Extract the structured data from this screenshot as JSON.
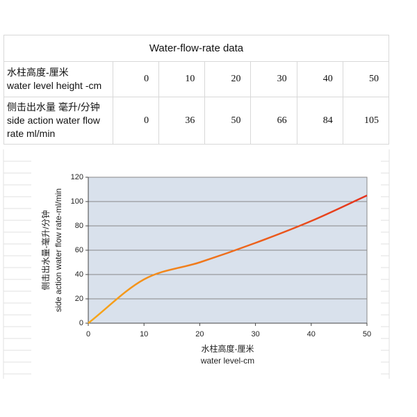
{
  "table": {
    "title": "Water-flow-rate data",
    "rows": [
      {
        "label": [
          "水柱高度-厘米",
          "water level height -cm"
        ],
        "cells": [
          0,
          10,
          20,
          30,
          40,
          50
        ]
      },
      {
        "label": [
          "侧击出水量  毫升/分钟",
          "side action water flow",
          "rate ml/min"
        ],
        "cells": [
          0,
          36,
          50,
          66,
          84,
          105
        ]
      }
    ]
  },
  "chart_data": {
    "type": "line",
    "x": [
      0,
      10,
      20,
      30,
      40,
      50
    ],
    "values": [
      0,
      36,
      50,
      66,
      84,
      105
    ],
    "xlim": [
      0,
      50
    ],
    "xticks": [
      0,
      10,
      20,
      30,
      40,
      50
    ],
    "ylim": [
      0,
      120
    ],
    "yticks": [
      0,
      20,
      40,
      60,
      80,
      100,
      120
    ],
    "xlabel": [
      "水柱高度-厘米",
      "water level-cm"
    ],
    "ylabel": [
      "侧击出水量-毫升/分钟",
      "side action water flow rate-ml/min"
    ],
    "grid": true,
    "smooth": true,
    "line_gradient": [
      "#f7a81b",
      "#e5321d"
    ],
    "plot_background": "#d9e1ec"
  }
}
